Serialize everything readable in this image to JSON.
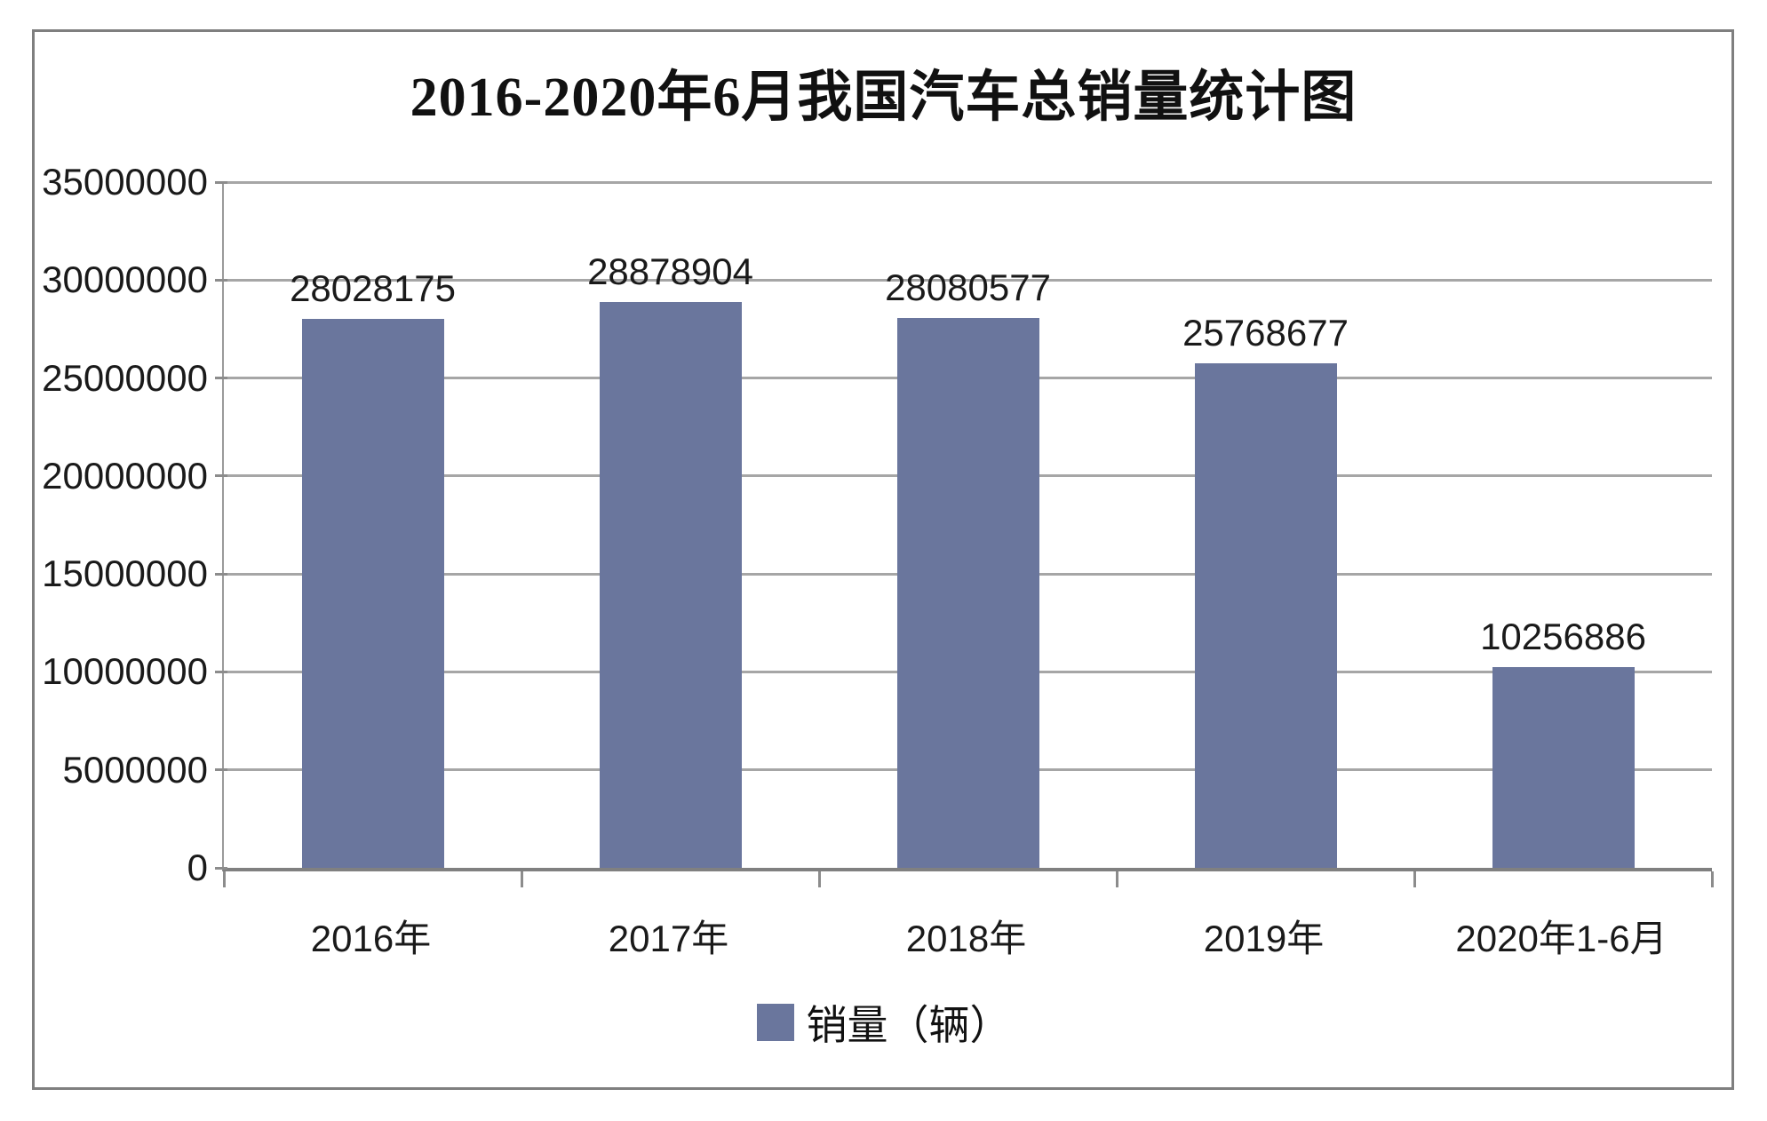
{
  "chart_data": {
    "type": "bar",
    "title": "2016-2020年6月我国汽车总销量统计图",
    "categories": [
      "2016年",
      "2017年",
      "2018年",
      "2019年",
      "2020年1-6月"
    ],
    "series": [
      {
        "name": "销量（辆）",
        "values": [
          28028175,
          28878904,
          28080577,
          25768677,
          10256886
        ]
      }
    ],
    "value_labels": [
      "28028175",
      "28878904",
      "28080577",
      "25768677",
      "10256886"
    ],
    "ylim": [
      0,
      35000000
    ],
    "ytick_step": 5000000,
    "ytick_labels": [
      "35000000",
      "30000000",
      "25000000",
      "20000000",
      "15000000",
      "10000000",
      "5000000",
      "0"
    ],
    "grid": "horizontal-on",
    "legend_position": "bottom",
    "legend_label": "销量（辆）",
    "colors": {
      "bar": "#6a769d",
      "gridline": "#a6a6a6",
      "axis": "#808080",
      "frame_border": "#7f7f7f",
      "text": "#1a1a1a",
      "background": "#ffffff"
    }
  }
}
